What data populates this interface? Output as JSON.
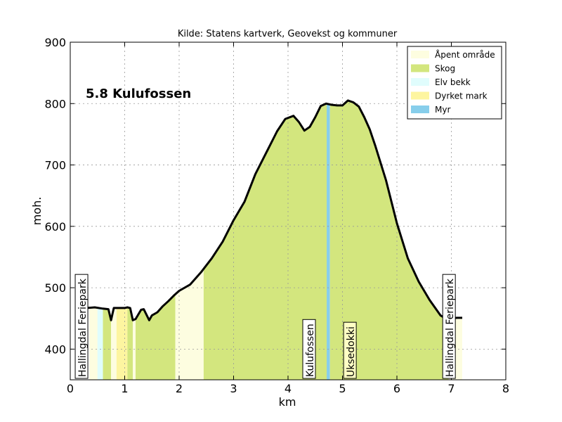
{
  "chart_data": {
    "type": "area",
    "title": "Kilde: Statens kartverk, Geovekst og kommuner",
    "route_label": "5.8 Kulufossen",
    "xlabel": "km",
    "ylabel": "moh.",
    "xlim": [
      0,
      8
    ],
    "ylim": [
      350,
      900
    ],
    "xticks": [
      "0",
      "1",
      "2",
      "3",
      "4",
      "5",
      "6",
      "7",
      "8"
    ],
    "yticks": [
      "400",
      "500",
      "600",
      "700",
      "800",
      "900"
    ],
    "grid": true,
    "legend_position": "top-right",
    "legend": [
      {
        "label": "Åpent område",
        "color": "#fdfde0"
      },
      {
        "label": "Skog",
        "color": "#d3e67e"
      },
      {
        "label": "Elv bekk",
        "color": "#e0fdfd"
      },
      {
        "label": "Dyrket mark",
        "color": "#fdf5a0"
      },
      {
        "label": "Myr",
        "color": "#87ceeb"
      }
    ],
    "elevation_profile": {
      "x": [
        0.1,
        0.3,
        0.45,
        0.6,
        0.7,
        0.75,
        0.8,
        0.85,
        1.0,
        1.05,
        1.1,
        1.15,
        1.2,
        1.3,
        1.35,
        1.45,
        1.5,
        1.6,
        1.7,
        1.8,
        1.9,
        2.0,
        2.2,
        2.4,
        2.6,
        2.8,
        3.0,
        3.2,
        3.4,
        3.6,
        3.8,
        3.95,
        4.1,
        4.2,
        4.3,
        4.4,
        4.5,
        4.6,
        4.7,
        4.8,
        4.9,
        5.0,
        5.1,
        5.2,
        5.3,
        5.4,
        5.5,
        5.6,
        5.8,
        6.0,
        6.2,
        6.4,
        6.6,
        6.8,
        6.95,
        7.0,
        7.1,
        7.2
      ],
      "y": [
        445,
        467,
        468,
        466,
        465,
        447,
        467,
        467,
        467,
        468,
        467,
        447,
        449,
        464,
        465,
        447,
        455,
        460,
        470,
        478,
        487,
        495,
        505,
        525,
        548,
        575,
        610,
        640,
        685,
        720,
        755,
        775,
        780,
        770,
        756,
        762,
        778,
        796,
        800,
        798,
        797,
        797,
        805,
        802,
        795,
        778,
        758,
        732,
        675,
        605,
        548,
        510,
        480,
        455,
        447,
        450,
        451,
        451
      ]
    },
    "land_cover_segments": [
      {
        "category": "Åpent område",
        "x": [
          0.35,
          0.6
        ]
      },
      {
        "category": "Elv bekk",
        "x": [
          0.5,
          0.6
        ]
      },
      {
        "category": "Skog",
        "x": [
          0.6,
          0.75
        ]
      },
      {
        "category": "Åpent område",
        "x": [
          0.75,
          0.85
        ]
      },
      {
        "category": "Dyrket mark",
        "x": [
          0.85,
          1.05
        ]
      },
      {
        "category": "Skog",
        "x": [
          1.05,
          1.15
        ]
      },
      {
        "category": "Åpent område",
        "x": [
          1.15,
          1.2
        ]
      },
      {
        "category": "Skog",
        "x": [
          1.2,
          1.93
        ]
      },
      {
        "category": "Åpent område",
        "x": [
          1.93,
          2.45
        ]
      },
      {
        "category": "Skog",
        "x": [
          2.45,
          4.71
        ]
      },
      {
        "category": "Myr",
        "x": [
          4.71,
          4.77
        ]
      },
      {
        "category": "Skog",
        "x": [
          4.77,
          6.95
        ]
      },
      {
        "category": "Åpent område",
        "x": [
          6.95,
          7.2
        ]
      }
    ],
    "places": [
      {
        "label": "Hallingdal Feriepark",
        "x": 0.22
      },
      {
        "label": "Kulufossen",
        "x": 4.4
      },
      {
        "label": "Uksedokki",
        "x": 5.15
      },
      {
        "label": "Hallingdal Feriepark",
        "x": 6.97
      }
    ]
  }
}
